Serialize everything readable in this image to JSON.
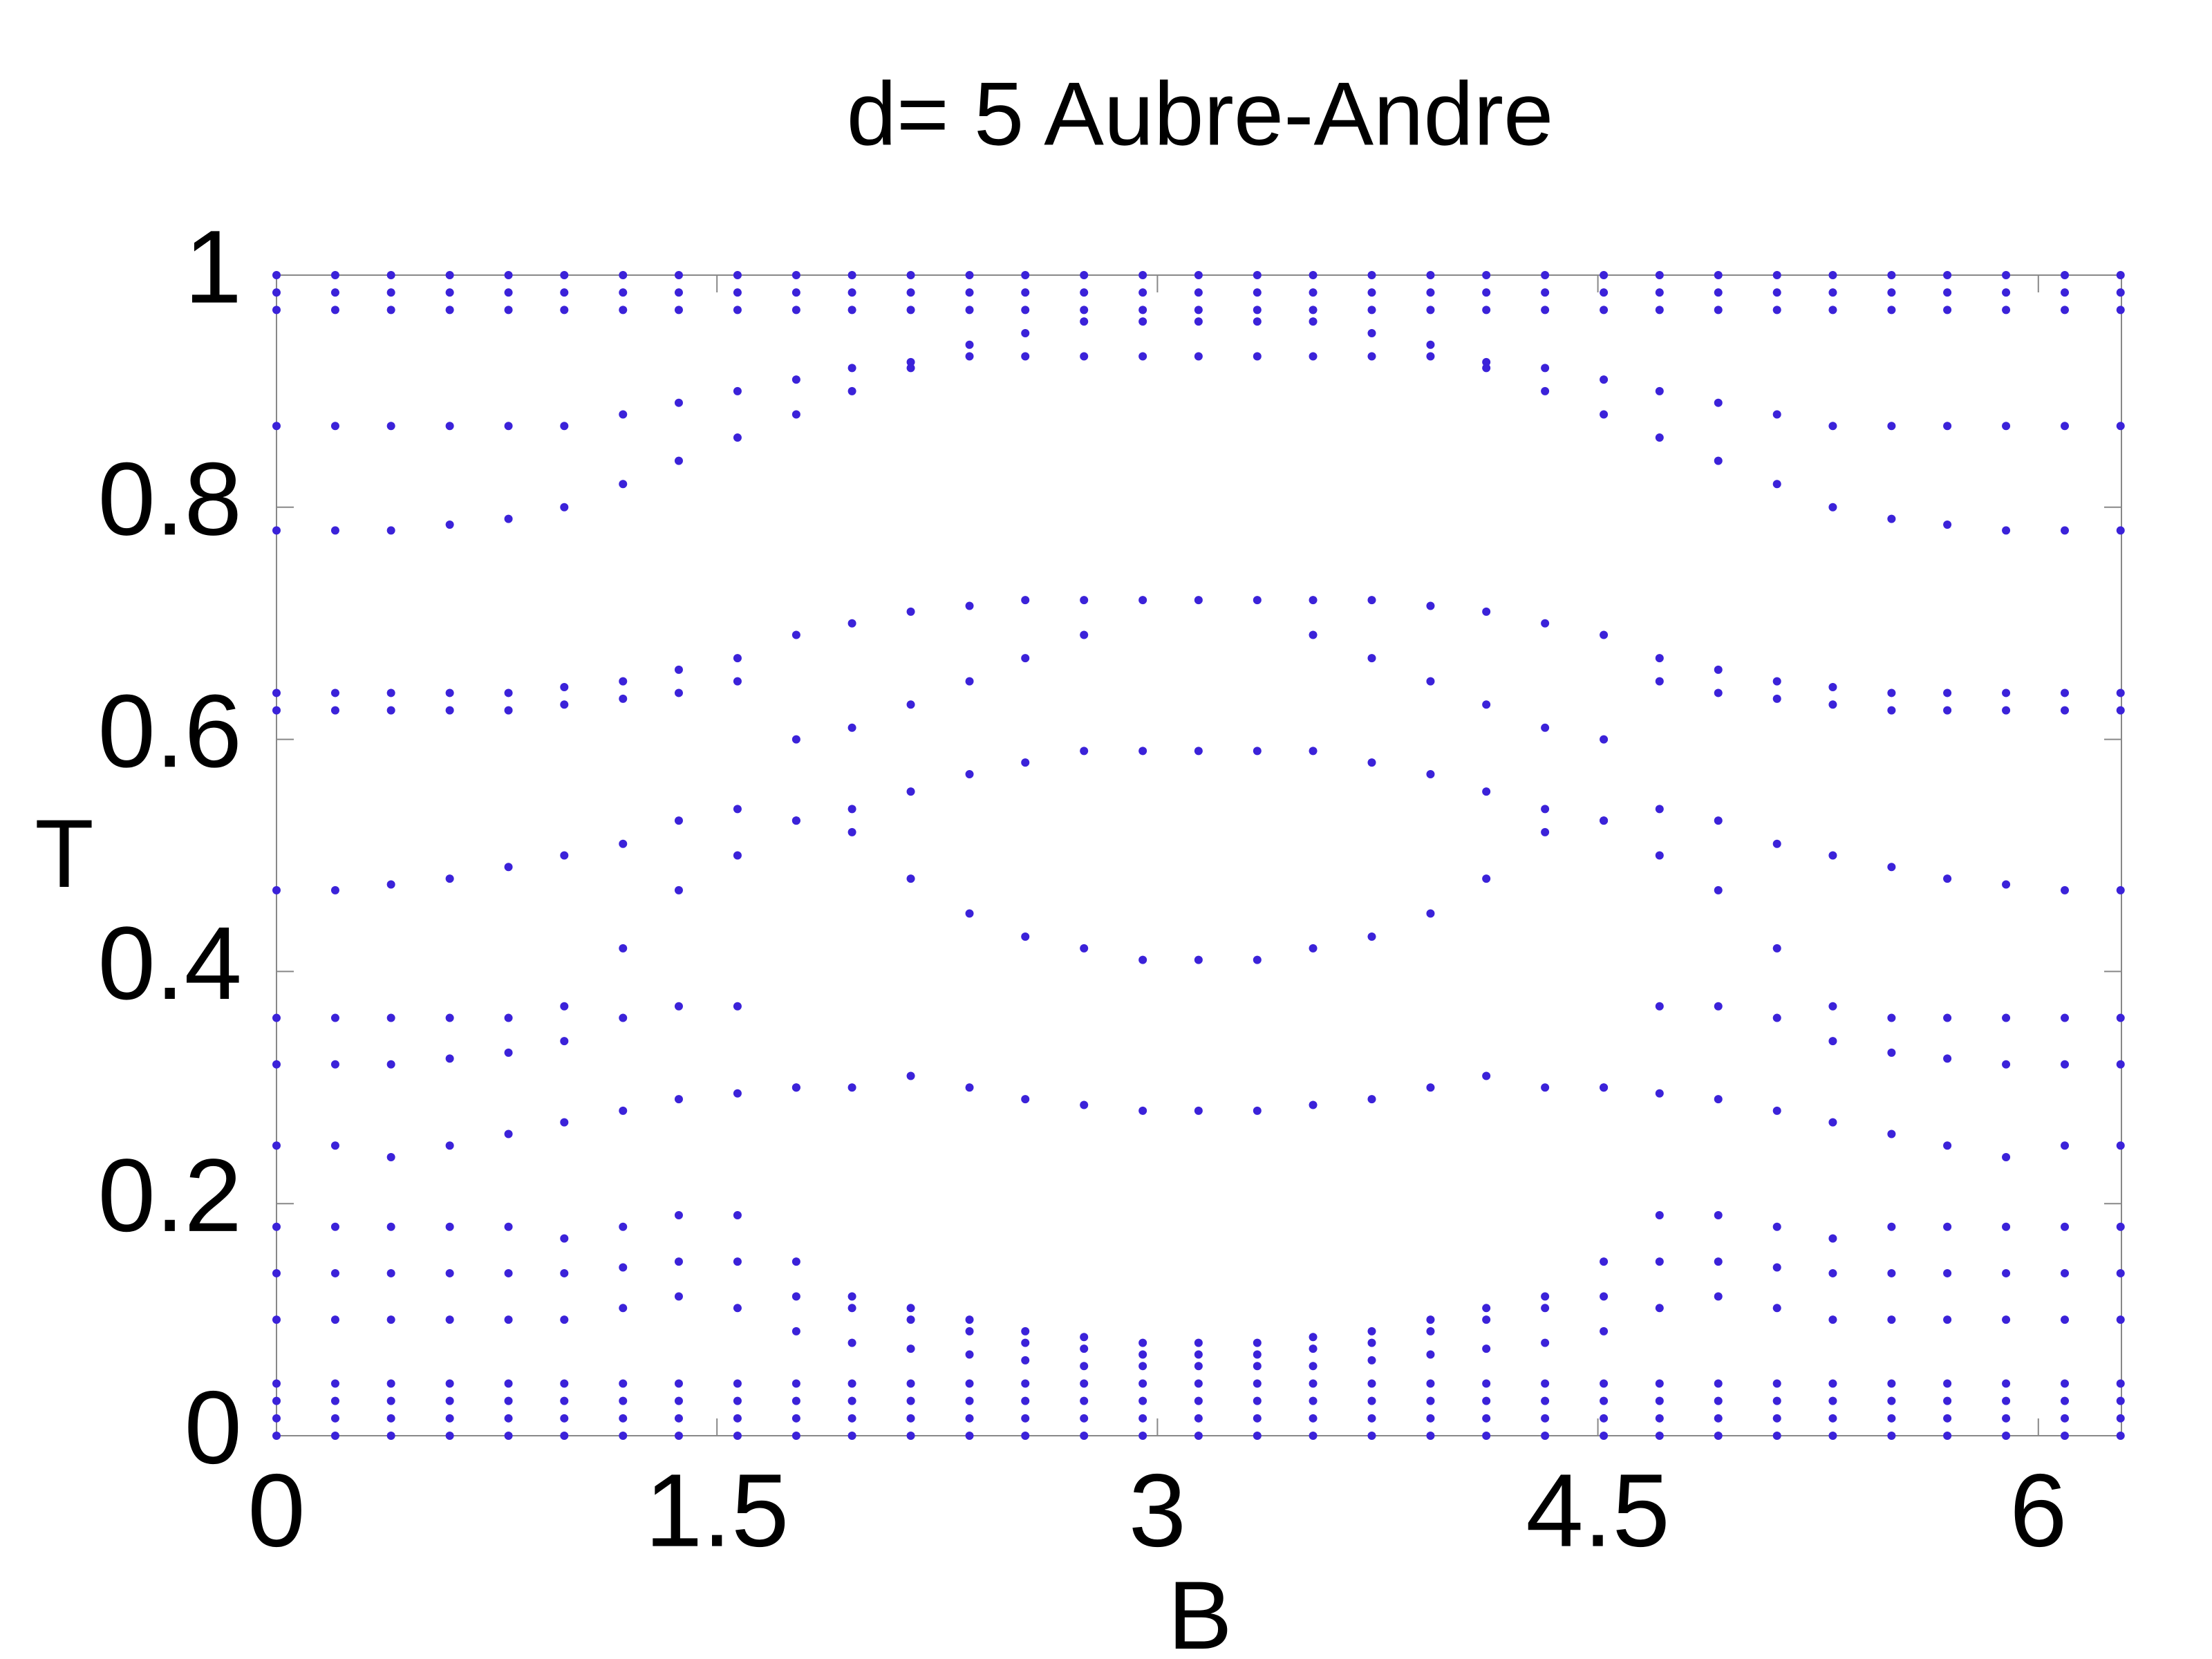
{
  "chart_data": {
    "type": "scatter",
    "title": "d= 5 Aubre-Andre",
    "xlabel": "B",
    "ylabel": "T",
    "xlim": [
      0,
      6.283
    ],
    "ylim": [
      0,
      1
    ],
    "xticks": [
      0,
      1.5,
      3,
      4.5,
      6
    ],
    "yticks": [
      0,
      0.2,
      0.4,
      0.6,
      0.8,
      1
    ],
    "x": [
      0,
      0.2,
      0.39,
      0.59,
      0.79,
      0.98,
      1.18,
      1.37,
      1.57,
      1.77,
      1.96,
      2.16,
      2.36,
      2.55,
      2.75,
      2.95,
      3.14,
      3.34,
      3.53,
      3.73,
      3.93,
      4.12,
      4.32,
      4.52,
      4.71,
      4.91,
      5.11,
      5.3,
      5.5,
      5.69,
      5.89,
      6.09,
      6.28
    ],
    "series": [
      {
        "color": "#3b22d9",
        "values": [
          1,
          1,
          1,
          1,
          1,
          1,
          1,
          1,
          1,
          1,
          1,
          1,
          1,
          1,
          1,
          1,
          1,
          1,
          1,
          1,
          1,
          1,
          1,
          1,
          1,
          1,
          1,
          1,
          1,
          1,
          1,
          1,
          1
        ]
      },
      {
        "color": "#3b22d9",
        "values": [
          0.985,
          0.985,
          0.985,
          0.985,
          0.985,
          0.985,
          0.985,
          0.985,
          0.985,
          0.985,
          0.985,
          0.985,
          0.985,
          0.985,
          0.985,
          0.985,
          0.985,
          0.985,
          0.985,
          0.985,
          0.985,
          0.985,
          0.985,
          0.985,
          0.985,
          0.985,
          0.985,
          0.985,
          0.985,
          0.985,
          0.985,
          0.985,
          0.985
        ]
      },
      {
        "color": "#3b22d9",
        "values": [
          0.97,
          0.97,
          0.97,
          0.97,
          0.97,
          0.97,
          0.97,
          0.97,
          0.97,
          0.97,
          0.97,
          0.97,
          0.97,
          0.97,
          0.97,
          0.97,
          0.97,
          0.97,
          0.97,
          0.97,
          0.97,
          0.97,
          0.97,
          0.97,
          0.97,
          0.97,
          0.97,
          0.97,
          0.97,
          0.97,
          0.97,
          0.97,
          0.97
        ]
      },
      {
        "color": "#3b22d9",
        "values": [
          0.87,
          0.87,
          0.87,
          0.87,
          0.87,
          0.87,
          0.88,
          0.89,
          0.9,
          0.91,
          0.92,
          0.925,
          0.93,
          0.93,
          0.93,
          0.93,
          0.93,
          0.93,
          0.93,
          0.93,
          0.93,
          0.925,
          0.92,
          0.91,
          0.9,
          0.89,
          0.88,
          0.87,
          0.87,
          0.87,
          0.87,
          0.87,
          0.87
        ]
      },
      {
        "color": "#3b22d9",
        "values": [
          0.78,
          0.78,
          0.78,
          0.785,
          0.79,
          0.8,
          0.82,
          0.84,
          0.86,
          0.88,
          0.9,
          0.92,
          0.94,
          0.95,
          0.96,
          0.96,
          0.96,
          0.96,
          0.96,
          0.95,
          0.94,
          0.92,
          0.9,
          0.88,
          0.86,
          0.84,
          0.82,
          0.8,
          0.79,
          0.785,
          0.78,
          0.78,
          0.78
        ]
      },
      {
        "color": "#3b22d9",
        "values": [
          0.64,
          0.64,
          0.64,
          0.64,
          0.64,
          0.645,
          0.65,
          0.66,
          0.67,
          0.69,
          0.7,
          0.71,
          0.715,
          0.72,
          0.72,
          0.72,
          0.72,
          0.72,
          0.72,
          0.72,
          0.715,
          0.71,
          0.7,
          0.69,
          0.67,
          0.66,
          0.65,
          0.645,
          0.64,
          0.64,
          0.64,
          0.64,
          0.64
        ]
      },
      {
        "color": "#3b22d9",
        "values": [
          0.625,
          0.625,
          0.625,
          0.625,
          0.625,
          0.63,
          0.635,
          0.64,
          0.65,
          0.6,
          0.61,
          0.63,
          0.65,
          0.67,
          0.69,
          null,
          null,
          null,
          0.69,
          0.67,
          0.65,
          0.63,
          0.61,
          0.6,
          0.65,
          0.64,
          0.635,
          0.63,
          0.625,
          0.625,
          0.625,
          0.625,
          0.625
        ]
      },
      {
        "color": "#3b22d9",
        "values": [
          0.47,
          0.47,
          0.475,
          0.48,
          0.49,
          0.5,
          0.51,
          0.53,
          0.54,
          0.53,
          0.54,
          0.555,
          0.57,
          0.58,
          0.59,
          0.59,
          0.59,
          0.59,
          0.59,
          0.58,
          0.57,
          0.555,
          0.54,
          0.53,
          0.54,
          0.53,
          0.51,
          0.5,
          0.49,
          0.48,
          0.475,
          0.47,
          0.47
        ]
      },
      {
        "color": "#3b22d9",
        "values": [
          0.36,
          0.36,
          0.36,
          0.36,
          0.36,
          0.37,
          0.42,
          0.47,
          0.5,
          0.53,
          0.52,
          0.48,
          0.45,
          0.43,
          0.42,
          0.41,
          0.41,
          0.41,
          0.42,
          0.43,
          0.45,
          0.48,
          0.52,
          0.53,
          0.5,
          0.47,
          0.42,
          0.37,
          0.36,
          0.36,
          0.36,
          0.36,
          0.36
        ]
      },
      {
        "color": "#3b22d9",
        "values": [
          0.32,
          0.32,
          0.32,
          0.325,
          0.33,
          0.34,
          0.36,
          0.37,
          0.37,
          0.3,
          0.3,
          0.31,
          0.3,
          0.29,
          0.285,
          0.28,
          0.28,
          0.28,
          0.285,
          0.29,
          0.3,
          0.31,
          0.3,
          0.3,
          0.37,
          0.37,
          0.36,
          0.34,
          0.33,
          0.325,
          0.32,
          0.32,
          0.32
        ]
      },
      {
        "color": "#3b22d9",
        "values": [
          0.25,
          0.25,
          0.24,
          0.25,
          0.26,
          0.27,
          0.28,
          0.29,
          0.295,
          0.3,
          null,
          null,
          null,
          null,
          null,
          null,
          null,
          null,
          null,
          null,
          null,
          null,
          null,
          0.3,
          0.295,
          0.29,
          0.28,
          0.27,
          0.26,
          0.25,
          0.24,
          0.25,
          0.25
        ]
      },
      {
        "color": "#3b22d9",
        "values": [
          0.18,
          0.18,
          0.18,
          0.18,
          0.18,
          0.17,
          0.18,
          0.19,
          0.19,
          0.15,
          0.12,
          0.11,
          0.1,
          0.09,
          0.085,
          0.08,
          0.08,
          0.08,
          0.085,
          0.09,
          0.1,
          0.11,
          0.12,
          0.15,
          0.19,
          0.19,
          0.18,
          0.17,
          0.18,
          0.18,
          0.18,
          0.18,
          0.18
        ]
      },
      {
        "color": "#3b22d9",
        "values": [
          0.14,
          0.14,
          0.14,
          0.14,
          0.14,
          0.14,
          0.145,
          0.15,
          0.15,
          0.12,
          0.11,
          0.1,
          0.09,
          0.08,
          0.075,
          0.07,
          0.07,
          0.07,
          0.075,
          0.08,
          0.09,
          0.1,
          0.11,
          0.12,
          0.15,
          0.15,
          0.145,
          0.14,
          0.14,
          0.14,
          0.14,
          0.14,
          0.14
        ]
      },
      {
        "color": "#3b22d9",
        "values": [
          0.1,
          0.1,
          0.1,
          0.1,
          0.1,
          0.1,
          0.11,
          0.12,
          0.11,
          0.09,
          0.08,
          0.075,
          0.07,
          0.065,
          0.06,
          0.06,
          0.06,
          0.06,
          0.06,
          0.065,
          0.07,
          0.075,
          0.08,
          0.09,
          0.11,
          0.12,
          0.11,
          0.1,
          0.1,
          0.1,
          0.1,
          0.1,
          0.1
        ]
      },
      {
        "color": "#3b22d9",
        "values": [
          0.045,
          0.045,
          0.045,
          0.045,
          0.045,
          0.045,
          0.045,
          0.045,
          0.045,
          0.045,
          0.045,
          0.045,
          0.045,
          0.045,
          0.045,
          0.045,
          0.045,
          0.045,
          0.045,
          0.045,
          0.045,
          0.045,
          0.045,
          0.045,
          0.045,
          0.045,
          0.045,
          0.045,
          0.045,
          0.045,
          0.045,
          0.045,
          0.045
        ]
      },
      {
        "color": "#3b22d9",
        "values": [
          0.03,
          0.03,
          0.03,
          0.03,
          0.03,
          0.03,
          0.03,
          0.03,
          0.03,
          0.03,
          0.03,
          0.03,
          0.03,
          0.03,
          0.03,
          0.03,
          0.03,
          0.03,
          0.03,
          0.03,
          0.03,
          0.03,
          0.03,
          0.03,
          0.03,
          0.03,
          0.03,
          0.03,
          0.03,
          0.03,
          0.03,
          0.03,
          0.03
        ]
      },
      {
        "color": "#3b22d9",
        "values": [
          0.015,
          0.015,
          0.015,
          0.015,
          0.015,
          0.015,
          0.015,
          0.015,
          0.015,
          0.015,
          0.015,
          0.015,
          0.015,
          0.015,
          0.015,
          0.015,
          0.015,
          0.015,
          0.015,
          0.015,
          0.015,
          0.015,
          0.015,
          0.015,
          0.015,
          0.015,
          0.015,
          0.015,
          0.015,
          0.015,
          0.015,
          0.015,
          0.015
        ]
      },
      {
        "color": "#3b22d9",
        "values": [
          0,
          0,
          0,
          0,
          0,
          0,
          0,
          0,
          0,
          0,
          0,
          0,
          0,
          0,
          0,
          0,
          0,
          0,
          0,
          0,
          0,
          0,
          0,
          0,
          0,
          0,
          0,
          0,
          0,
          0,
          0,
          0,
          0
        ]
      }
    ]
  }
}
